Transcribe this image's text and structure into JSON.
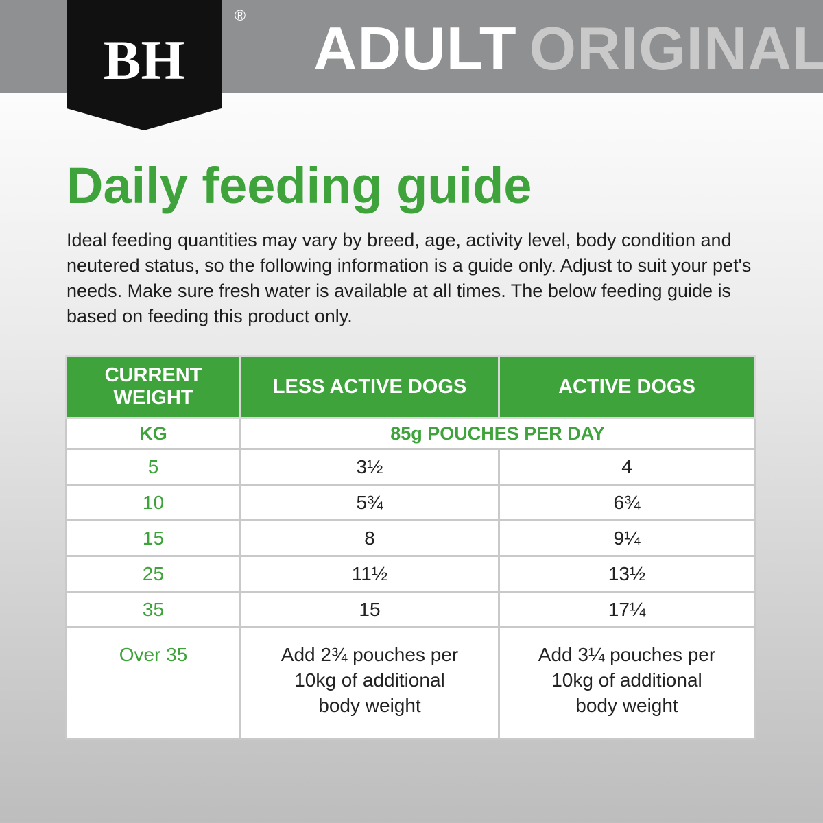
{
  "header": {
    "brand": "BH",
    "registered": "®",
    "title": "ADULT",
    "subtitle": "ORIGINAL"
  },
  "heading": "Daily feeding guide",
  "intro": "Ideal feeding quantities may vary by breed, age, activity level, body condition and neutered status, so the following information is a guide only. Adjust to suit your pet's needs. Make sure fresh water is available at all times. The below feeding guide is based on feeding this product only.",
  "table": {
    "headers": [
      "CURRENT WEIGHT",
      "LESS ACTIVE DOGS",
      "ACTIVE DOGS"
    ],
    "units": [
      "KG",
      "85g POUCHES PER DAY"
    ],
    "rows": [
      [
        "5",
        "3½",
        "4"
      ],
      [
        "10",
        "5¾",
        "6¾"
      ],
      [
        "15",
        "8",
        "9¼"
      ],
      [
        "25",
        "11½",
        "13½"
      ],
      [
        "35",
        "15",
        "17¼"
      ],
      [
        "Over 35",
        "Add 2¾ pouches per 10kg of additional body weight",
        "Add 3¼ pouches per 10kg of additional body weight"
      ]
    ]
  }
}
